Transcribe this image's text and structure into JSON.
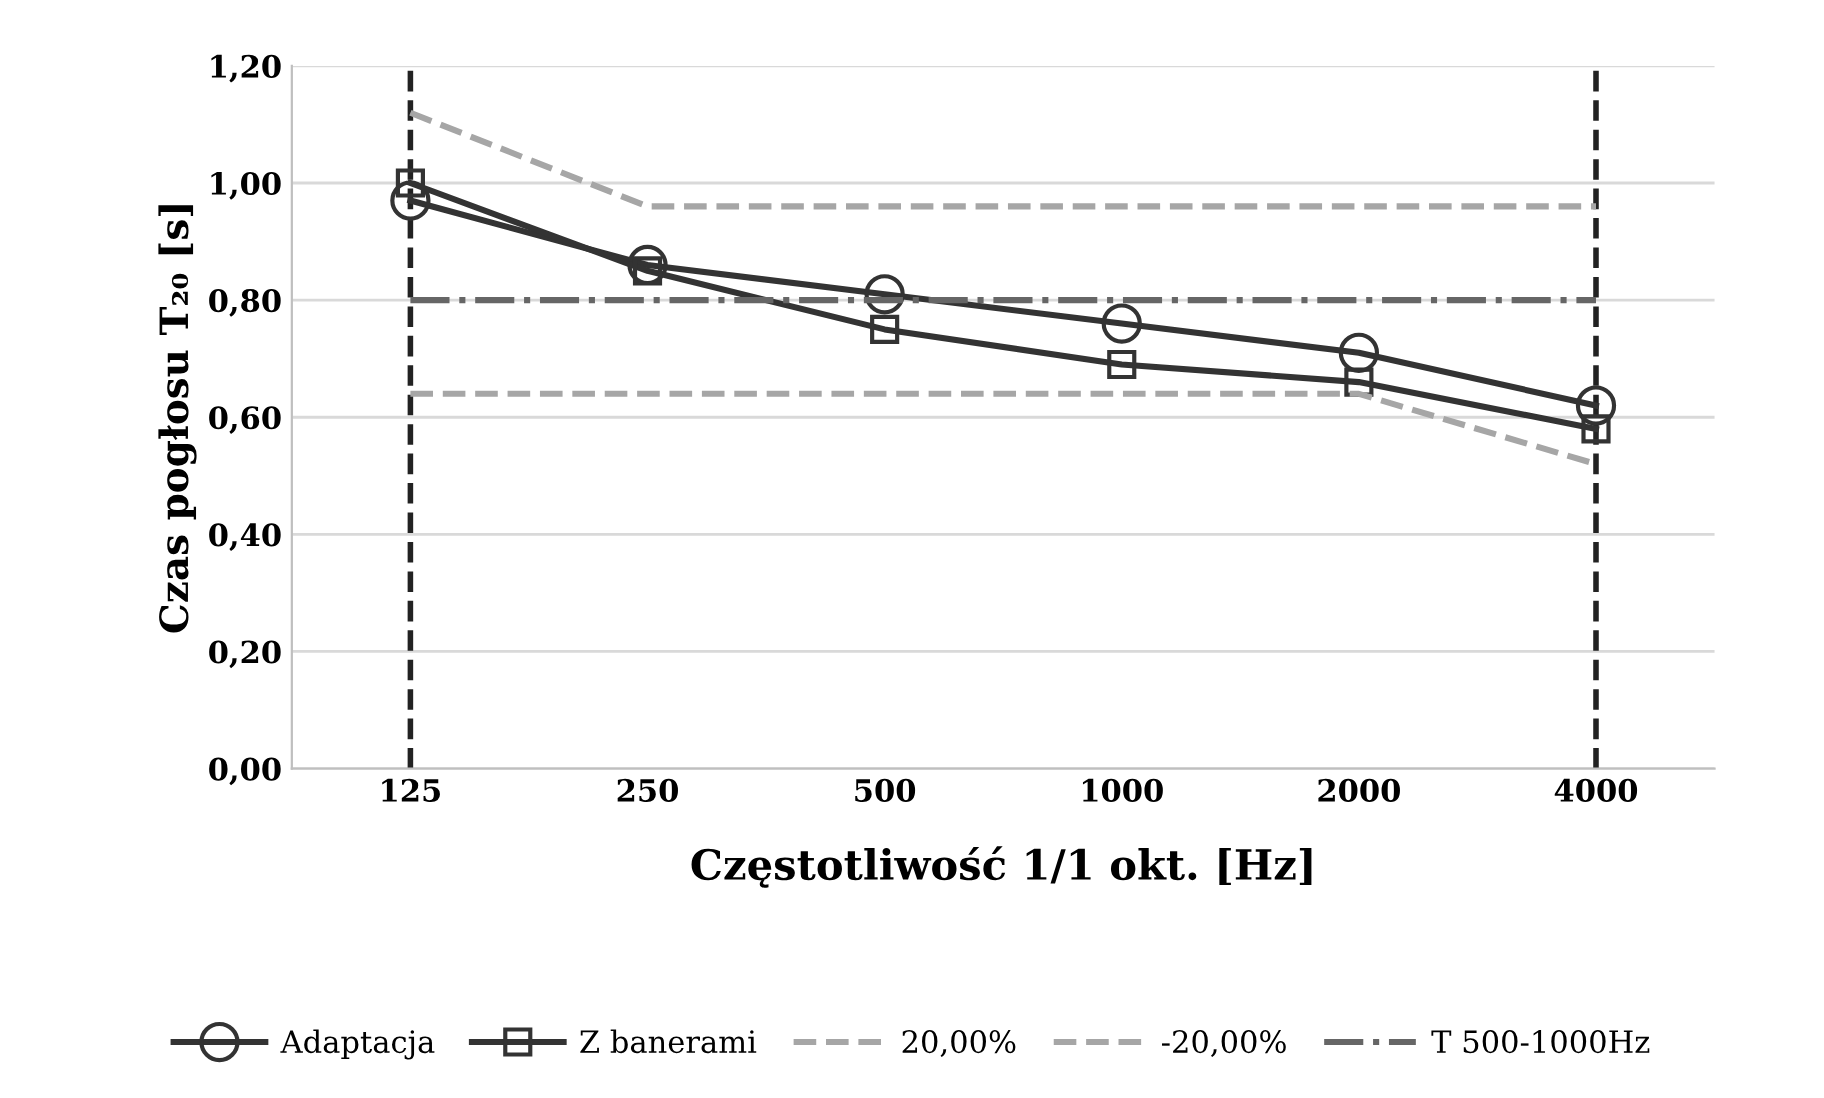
{
  "chart_data": {
    "type": "line",
    "xlabel": "Częstotliwość 1/1 okt. [Hz]",
    "ylabel": "Czas pogłosu T₂₀ [s]",
    "categories": [
      "125",
      "250",
      "500",
      "1000",
      "2000",
      "4000"
    ],
    "series": [
      {
        "name": "Adaptacja",
        "color": "#333333",
        "marker": "circle",
        "line_style": "solid",
        "values": [
          0.97,
          0.86,
          0.81,
          0.76,
          0.71,
          0.62
        ]
      },
      {
        "name": "Z banerami",
        "color": "#333333",
        "marker": "square",
        "line_style": "solid",
        "values": [
          1.0,
          0.85,
          0.75,
          0.69,
          0.66,
          0.58
        ]
      },
      {
        "name": "20,00%",
        "color": "#a6a6a6",
        "marker": "none",
        "line_style": "dashed",
        "values": [
          1.12,
          0.96,
          0.96,
          0.96,
          0.96,
          0.96
        ]
      },
      {
        "name": "-20,00%",
        "color": "#a6a6a6",
        "marker": "none",
        "line_style": "dashed",
        "values": [
          0.64,
          0.64,
          0.64,
          0.64,
          0.64,
          0.52
        ]
      },
      {
        "name": "T 500-1000Hz",
        "color": "#666666",
        "marker": "none",
        "line_style": "dashdot",
        "values": [
          0.8,
          0.8,
          0.8,
          0.8,
          0.8,
          0.8
        ]
      }
    ],
    "ylim": [
      0,
      1.2
    ],
    "yticks": [
      {
        "value": 0,
        "label": "0,00"
      },
      {
        "value": 0.2,
        "label": "0,20"
      },
      {
        "value": 0.4,
        "label": "0,40"
      },
      {
        "value": 0.6,
        "label": "0,60"
      },
      {
        "value": 0.8,
        "label": "0,80"
      },
      {
        "value": 1.0,
        "label": "1,00"
      },
      {
        "value": 1.2,
        "label": "1,20"
      }
    ],
    "ref_lines": [
      {
        "axis": "x",
        "value": "125",
        "color": "#222222",
        "line_style": "dashed"
      },
      {
        "axis": "x",
        "value": "4000",
        "color": "#222222",
        "line_style": "dashed"
      }
    ],
    "grid": "y",
    "legend": "bottom"
  }
}
